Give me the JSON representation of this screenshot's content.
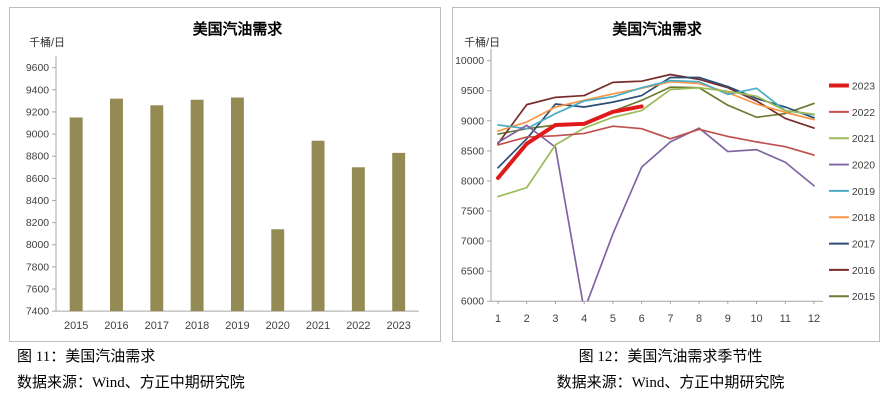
{
  "chart_data": [
    {
      "id": "fig11",
      "type": "bar",
      "title": "美国汽油需求",
      "unit_label": "千桶/日",
      "categories": [
        "2015",
        "2016",
        "2017",
        "2018",
        "2019",
        "2020",
        "2021",
        "2022",
        "2023"
      ],
      "values": [
        9150,
        9320,
        9260,
        9310,
        9330,
        8140,
        8940,
        8700,
        8830
      ],
      "ylim": [
        7400,
        9600
      ],
      "yticks": [
        7400,
        7600,
        7800,
        8000,
        8200,
        8400,
        8600,
        8800,
        9000,
        9200,
        9400,
        9600
      ],
      "grid": false,
      "bar_color": "#948a54",
      "caption": "图 11：美国汽油需求",
      "source": "数据来源：Wind、方正中期研究院"
    },
    {
      "id": "fig12",
      "type": "line",
      "title": "美国汽油需求",
      "unit_label": "千桶/日",
      "x": [
        "1",
        "2",
        "3",
        "4",
        "5",
        "6",
        "7",
        "8",
        "9",
        "10",
        "11",
        "12"
      ],
      "ylim": [
        6000,
        10000
      ],
      "yticks": [
        6000,
        6500,
        7000,
        7500,
        8000,
        8500,
        9000,
        9500,
        10000
      ],
      "grid": false,
      "legend_position": "right",
      "series": [
        {
          "name": "2023",
          "color": "#e01a1a",
          "width": 4,
          "values": [
            8050,
            8620,
            8930,
            8950,
            9150,
            9240
          ]
        },
        {
          "name": "2022",
          "color": "#c0504d",
          "width": 1.7,
          "values": [
            8600,
            8730,
            8750,
            8790,
            8910,
            8870,
            8700,
            8860,
            8740,
            8650,
            8570,
            8430
          ]
        },
        {
          "name": "2021",
          "color": "#9bbb59",
          "width": 1.7,
          "values": [
            7740,
            7890,
            8600,
            8880,
            9060,
            9170,
            9520,
            9550,
            9490,
            9410,
            9170,
            9110
          ]
        },
        {
          "name": "2020",
          "color": "#8064a2",
          "width": 1.7,
          "values": [
            8640,
            8925,
            8560,
            5850,
            7120,
            8230,
            8650,
            8880,
            8490,
            8520,
            8310,
            7920
          ]
        },
        {
          "name": "2019",
          "color": "#4bacc6",
          "width": 1.7,
          "values": [
            8930,
            8870,
            9120,
            9330,
            9400,
            9550,
            9670,
            9650,
            9440,
            9540,
            9170,
            9100
          ]
        },
        {
          "name": "2018",
          "color": "#f79646",
          "width": 1.7,
          "values": [
            8830,
            8980,
            9230,
            9340,
            9450,
            9540,
            9650,
            9620,
            9470,
            9280,
            9140,
            9020
          ]
        },
        {
          "name": "2017",
          "color": "#2c4d75",
          "width": 1.7,
          "values": [
            8220,
            8700,
            9280,
            9230,
            9310,
            9420,
            9720,
            9720,
            9570,
            9370,
            9230,
            9050
          ]
        },
        {
          "name": "2016",
          "color": "#772c2a",
          "width": 1.7,
          "values": [
            8620,
            9270,
            9390,
            9420,
            9640,
            9660,
            9770,
            9690,
            9550,
            9330,
            9040,
            8880
          ]
        },
        {
          "name": "2015",
          "color": "#6c7c32",
          "width": 1.7,
          "values": [
            8780,
            8870,
            8930,
            8930,
            9160,
            9340,
            9560,
            9550,
            9260,
            9060,
            9120,
            9290
          ]
        }
      ],
      "caption": "图 12：美国汽油需求季节性",
      "source": "数据来源：Wind、方正中期研究院"
    }
  ],
  "style": {
    "axis_color": "#a6a6a6",
    "tick_label_color": "#404040",
    "title_color": "#000000"
  }
}
